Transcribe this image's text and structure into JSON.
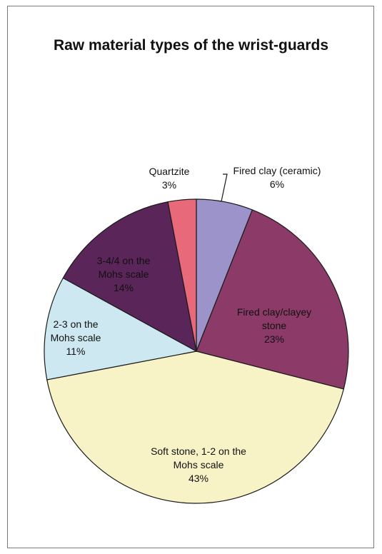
{
  "chart_data": {
    "type": "pie",
    "title": "Raw material types of the wrist-guards",
    "start_angle_deg": 0,
    "direction": "clockwise",
    "slices": [
      {
        "label_lines": [
          "Fired clay (ceramic)"
        ],
        "value": 6,
        "value_label": "6%",
        "color": "#9b93c9"
      },
      {
        "label_lines": [
          "Fired clay/clayey",
          "stone"
        ],
        "value": 23,
        "value_label": "23%",
        "color": "#8c3a68"
      },
      {
        "label_lines": [
          "Soft stone, 1-2 on the",
          "Mohs scale"
        ],
        "value": 43,
        "value_label": "43%",
        "color": "#f8f3c6"
      },
      {
        "label_lines": [
          "2-3 on the",
          "Mohs scale"
        ],
        "value": 11,
        "value_label": "11%",
        "color": "#cde8f0"
      },
      {
        "label_lines": [
          "3-4/4 on the",
          "Mohs scale"
        ],
        "value": 14,
        "value_label": "14%",
        "color": "#5a2559"
      },
      {
        "label_lines": [
          "Quartzite"
        ],
        "value": 3,
        "value_label": "3%",
        "color": "#e8697a"
      }
    ]
  }
}
